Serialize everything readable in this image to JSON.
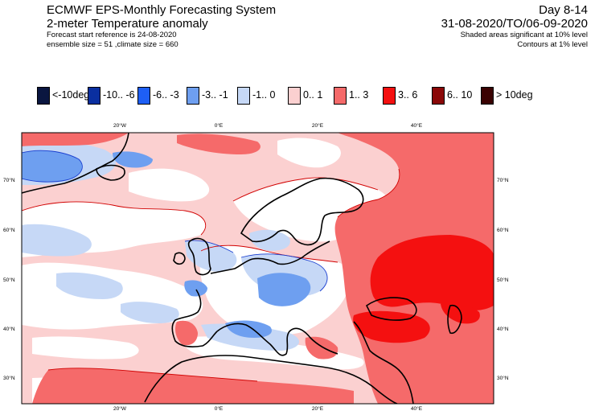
{
  "header": {
    "title": "ECMWF EPS-Monthly Forecasting System",
    "subtitle": "2-meter Temperature anomaly",
    "forecast_start": "Forecast start reference is 24-08-2020",
    "ensemble": "ensemble size = 51  ,climate size = 660",
    "day_range": "Day 8-14",
    "period": "31-08-2020/TO/06-09-2020",
    "note1": "Shaded areas significant at 10% level",
    "note2": "Contours at 1% level"
  },
  "legend": [
    {
      "label": "<-10deg",
      "color": "#0a1640"
    },
    {
      "label": "-10.. -6",
      "color": "#0a2fa0"
    },
    {
      "label": "-6.. -3",
      "color": "#1e5ff5"
    },
    {
      "label": "-3.. -1",
      "color": "#6e9ff0"
    },
    {
      "label": "-1..  0",
      "color": "#c6d8f6"
    },
    {
      "label": "0..  1",
      "color": "#fbd0d0"
    },
    {
      "label": "1..  3",
      "color": "#f56a6a"
    },
    {
      "label": "3..  6",
      "color": "#f41010"
    },
    {
      "label": "6.. 10",
      "color": "#8a0808"
    },
    {
      "label": "> 10deg",
      "color": "#3a0202"
    }
  ],
  "map": {
    "lon_labels": [
      "20°W",
      "0°E",
      "20°E",
      "40°E"
    ],
    "lat_labels": [
      "70°N",
      "60°N",
      "50°N",
      "40°N",
      "30°N"
    ]
  }
}
